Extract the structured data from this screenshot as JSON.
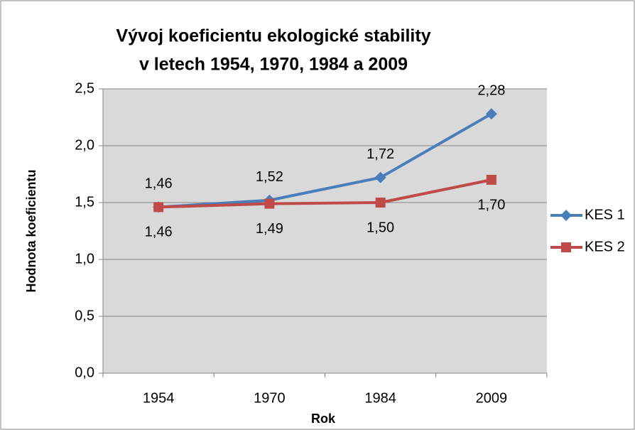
{
  "chart_data": {
    "type": "line",
    "title": [
      "Vývoj koeficientu ekologické stability",
      "v letech 1954, 1970, 1984 a 2009"
    ],
    "x_label": "Rok",
    "y_label": "Hodnota koeficientu",
    "categories": [
      "1954",
      "1970",
      "1984",
      "2009"
    ],
    "series": [
      {
        "name": "KES 1",
        "color": "#4a7ebb",
        "marker": "diamond",
        "values": [
          1.46,
          1.52,
          1.72,
          2.28
        ],
        "value_labels": [
          "1,46",
          "1,52",
          "1,72",
          "2,28"
        ]
      },
      {
        "name": "KES 2",
        "color": "#be4b48",
        "marker": "square",
        "values": [
          1.46,
          1.49,
          1.5,
          1.7
        ],
        "value_labels": [
          "1,46",
          "1,49",
          "1,50",
          "1,70"
        ]
      }
    ],
    "ylim": [
      0,
      2.5
    ],
    "yticks": [
      {
        "value": 0,
        "label": "0,0"
      },
      {
        "value": 0.5,
        "label": "0,5"
      },
      {
        "value": 1,
        "label": "1,0"
      },
      {
        "value": 1.5,
        "label": "1,5"
      },
      {
        "value": 2,
        "label": "2,0"
      },
      {
        "value": 2.5,
        "label": "2,5"
      }
    ],
    "grid": true,
    "legend": "right",
    "plot_background": "#d9d9d9"
  }
}
